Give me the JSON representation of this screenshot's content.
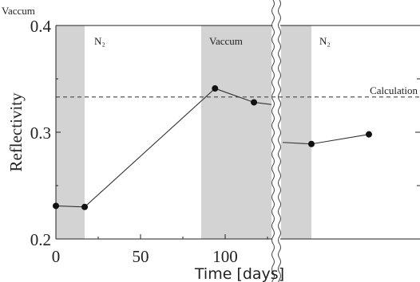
{
  "chart_data": {
    "type": "line",
    "title": "",
    "xlabel": "Time [days]",
    "ylabel": "Reflectivity",
    "axis_break": true,
    "x_ticks": [
      "0",
      "50",
      "100"
    ],
    "y_ticks": [
      "0.2",
      "0.3",
      "0.4"
    ],
    "ylim": [
      0.2,
      0.4
    ],
    "grid": false,
    "regions": [
      {
        "label": "Vaccum",
        "shaded": true,
        "x_start": 0,
        "x_end": 17
      },
      {
        "label": "N₂",
        "shaded": false,
        "x_start": 17,
        "x_end": 95
      },
      {
        "label": "Vaccum",
        "shaded": true,
        "x_start": 95,
        "x_end": null
      },
      {
        "label": "N₂",
        "shaded": false,
        "x_start": null,
        "x_end": null
      }
    ],
    "reference_line": {
      "label": "Calculation",
      "y": 0.333
    },
    "series": [
      {
        "points_before_break": [
          {
            "x": 0,
            "y": 0.231
          },
          {
            "x": 17,
            "y": 0.23
          },
          {
            "x": 94,
            "y": 0.341
          },
          {
            "x": 117,
            "y": 0.328
          }
        ],
        "points_after_break": [
          {
            "y": 0.289
          },
          {
            "y": 0.298
          }
        ]
      }
    ]
  }
}
